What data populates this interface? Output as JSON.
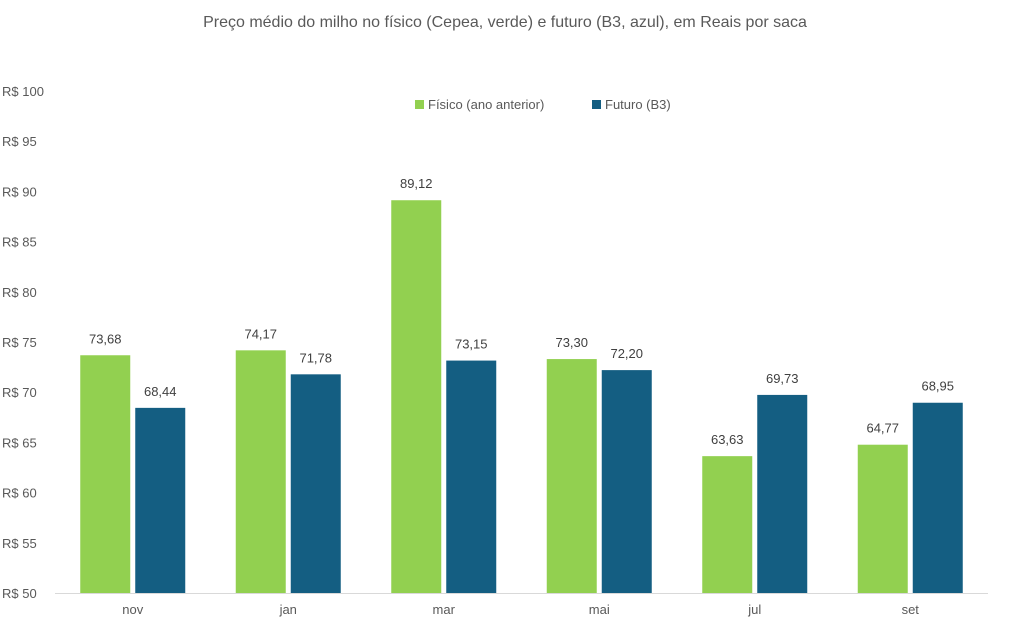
{
  "chart_data": {
    "type": "bar",
    "title": "Preço médio do milho no físico (Cepea, verde) e futuro (B3, azul), em Reais por saca",
    "xlabel": "",
    "ylabel": "",
    "categories": [
      "nov",
      "jan",
      "mar",
      "mai",
      "jul",
      "set"
    ],
    "series": [
      {
        "name": "Físico (ano anterior)",
        "color": "#92d050",
        "values": [
          73.68,
          74.17,
          89.12,
          73.3,
          63.63,
          64.77
        ],
        "labels": [
          "73,68",
          "74,17",
          "89,12",
          "73,30",
          "63,63",
          "64,77"
        ]
      },
      {
        "name": "Futuro (B3)",
        "color": "#145e82",
        "values": [
          68.44,
          71.78,
          73.15,
          72.2,
          69.73,
          68.95
        ],
        "labels": [
          "68,44",
          "71,78",
          "73,15",
          "72,20",
          "69,73",
          "68,95"
        ]
      }
    ],
    "ylim": [
      50,
      100
    ],
    "yticks": [
      50,
      55,
      60,
      65,
      70,
      75,
      80,
      85,
      90,
      95,
      100
    ],
    "ytick_labels": [
      "R$ 50",
      "R$ 55",
      "R$ 60",
      "R$ 65",
      "R$ 70",
      "R$ 75",
      "R$ 80",
      "R$ 85",
      "R$ 90",
      "R$ 95",
      "R$ 100"
    ],
    "grid": false,
    "legend_position": "top"
  }
}
